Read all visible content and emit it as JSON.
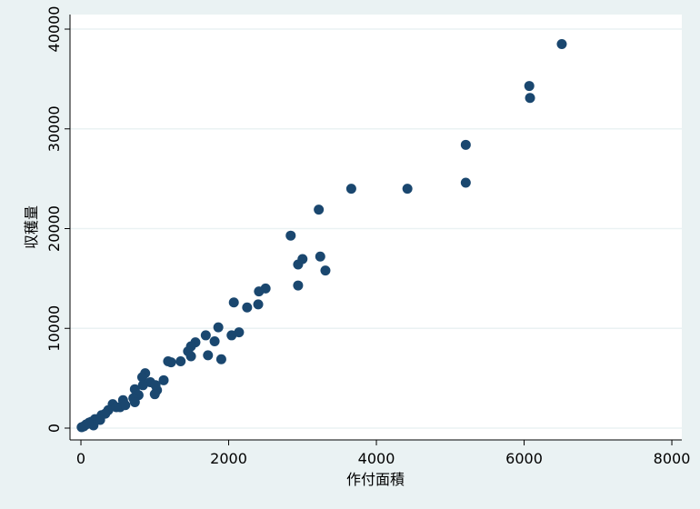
{
  "chart_data": {
    "type": "scatter",
    "xlabel": "作付面積",
    "ylabel": "収穫量",
    "color": "#1a476f",
    "grid": true,
    "xlim": [
      -148,
      8135
    ],
    "ylim": [
      -1185,
      41460
    ],
    "xticks": [
      0,
      2000,
      4000,
      6000,
      8000
    ],
    "yticks": [
      0,
      10000,
      20000,
      30000,
      40000
    ],
    "x": [
      6510,
      6070,
      6080,
      5210,
      5210,
      4420,
      3660,
      3220,
      2840,
      3240,
      3000,
      2940,
      3310,
      2940,
      2500,
      2410,
      2070,
      2400,
      2250,
      1860,
      2140,
      2040,
      1690,
      1810,
      1550,
      1490,
      1450,
      1490,
      1720,
      1900,
      1350,
      1180,
      1220,
      1120,
      870,
      830,
      940,
      1010,
      840,
      1030,
      730,
      1000,
      780,
      710,
      570,
      730,
      430,
      530,
      600,
      370,
      280,
      190,
      110,
      40,
      70,
      140,
      230,
      330,
      480,
      170,
      260,
      10,
      100
    ],
    "values": [
      38500,
      34300,
      33100,
      28400,
      24600,
      24000,
      24000,
      21900,
      19300,
      17200,
      16950,
      16400,
      15800,
      14300,
      14000,
      13700,
      12600,
      12400,
      12100,
      10100,
      9600,
      9300,
      9300,
      8700,
      8600,
      8200,
      7700,
      7200,
      7300,
      6900,
      6700,
      6700,
      6600,
      4800,
      5500,
      5100,
      4600,
      4300,
      4300,
      3800,
      3900,
      3400,
      3300,
      3000,
      2800,
      2600,
      2400,
      2100,
      2300,
      1800,
      1300,
      900,
      550,
      180,
      360,
      640,
      900,
      1450,
      2100,
      270,
      820,
      90,
      460
    ]
  }
}
